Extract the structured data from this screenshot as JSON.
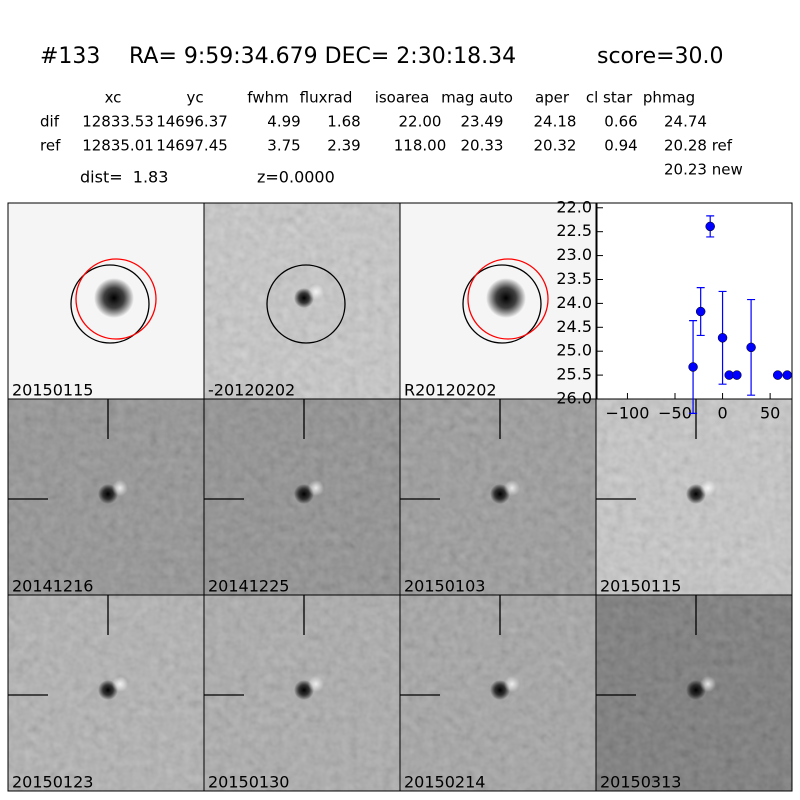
{
  "header": {
    "id": "#133",
    "coords": "RA= 9:59:34.679 DEC= 2:30:18.34",
    "score": "score=30.0"
  },
  "table": {
    "columns": [
      "xc",
      "yc",
      "fwhm",
      "fluxrad",
      "isoarea",
      "mag auto",
      "aper",
      "cl star",
      "phmag"
    ],
    "rows": [
      [
        "dif",
        "12833.53",
        "14696.37",
        "4.99",
        "1.68",
        "22.00",
        "23.49",
        "24.18",
        "0.66",
        "24.74"
      ],
      [
        "ref",
        "12835.01",
        "14697.45",
        "3.75",
        "2.39",
        "118.00",
        "20.33",
        "20.32",
        "0.94",
        "20.28 ref"
      ]
    ],
    "extra": "20.23 new"
  },
  "info": {
    "dist": "dist=  1.83",
    "z": "z=0.0000"
  },
  "stamps": [
    {
      "label": "20150115"
    },
    {
      "label": "-20120202"
    },
    {
      "label": "R20120202"
    },
    {
      "label": "20141216"
    },
    {
      "label": "20141225"
    },
    {
      "label": "20150103"
    },
    {
      "label": "20150115",
      "color": "#ff0000"
    },
    {
      "label": "20150123"
    },
    {
      "label": "20150130"
    },
    {
      "label": "20150214"
    },
    {
      "label": "20150313"
    }
  ],
  "chart_data": {
    "type": "scatter",
    "x": [
      -31,
      -23,
      -13,
      0,
      7,
      15,
      30,
      58,
      68
    ],
    "series": [
      {
        "color": "#0000ff",
        "values": [
          25.33,
          24.17,
          22.39,
          24.72,
          25.5,
          25.5,
          24.92,
          25.5,
          25.5
        ],
        "errors": [
          0.97,
          0.5,
          0.22,
          0.97,
          null,
          null,
          1.0,
          null,
          null
        ]
      }
    ],
    "xlim": [
      -132,
      73
    ],
    "ylim": [
      26.0,
      21.9
    ],
    "xticks": [
      {
        "value": -100,
        "label": "−100"
      },
      {
        "value": -50,
        "label": "−50"
      },
      0,
      50
    ],
    "yticks": [
      {
        "value": 22,
        "label": "22.0"
      },
      22.5,
      {
        "value": 23,
        "label": "23.0"
      },
      23.5,
      {
        "value": 24,
        "label": "24.0"
      },
      24.5,
      {
        "value": 25,
        "label": "25.0"
      },
      25.5,
      {
        "value": 26,
        "label": "26.0"
      }
    ]
  }
}
